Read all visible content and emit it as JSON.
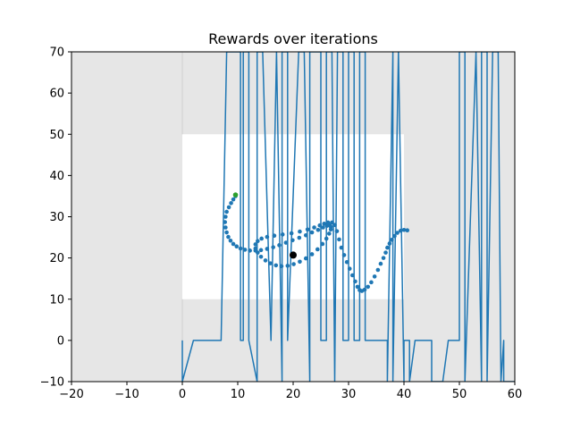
{
  "chart_data": {
    "type": "line",
    "title": "Rewards over iterations",
    "xlabel": "",
    "ylabel": "",
    "xlim": [
      -20,
      60
    ],
    "ylim": [
      -10,
      70
    ],
    "xticks": [
      -20,
      -10,
      0,
      10,
      20,
      30,
      40,
      50,
      60
    ],
    "yticks": [
      -10,
      0,
      10,
      20,
      30,
      40,
      50,
      60,
      70
    ],
    "xtick_labels": [
      "−20",
      "−10",
      "0",
      "10",
      "20",
      "30",
      "40",
      "50",
      "60"
    ],
    "ytick_labels": [
      "−10",
      "0",
      "10",
      "20",
      "30",
      "40",
      "50",
      "60",
      "70"
    ],
    "grid": false,
    "legend": "none",
    "colors": {
      "background_region": "#e6e6e6",
      "inner_region": "#ffffff",
      "series": "#1f77b4",
      "trajectory_points": "#1f77b4",
      "start_point": "#2ca02c",
      "target_point": "#000000"
    },
    "regions": [
      {
        "kind": "outer_shaded",
        "x": [
          -20,
          60
        ],
        "y": [
          -10,
          70
        ]
      },
      {
        "kind": "inner_clear",
        "x": [
          0,
          40
        ],
        "y": [
          10,
          50
        ]
      }
    ],
    "series": [
      {
        "kind": "line",
        "x": [
          0,
          0,
          2,
          2,
          7,
          7.5,
          8,
          10.5,
          10.5,
          11,
          11,
          12,
          12,
          13.5,
          13.5,
          14.5,
          16,
          17,
          18,
          18,
          19,
          19,
          21,
          22,
          23,
          23,
          25,
          25,
          26,
          26,
          27,
          27.5,
          28,
          29,
          29,
          30,
          30,
          31,
          31,
          32,
          32,
          33,
          33,
          35,
          37,
          37,
          38,
          38,
          39,
          39,
          40,
          40,
          41,
          41,
          42,
          42,
          45,
          45,
          47,
          48,
          48,
          50,
          50,
          51,
          51,
          53,
          53,
          54,
          54,
          55,
          55,
          56,
          56,
          57,
          57.5,
          58,
          58,
          59,
          60
        ],
        "y": [
          0,
          -10,
          0,
          0,
          0,
          35,
          70,
          70,
          0,
          0,
          70,
          70,
          0,
          -10,
          70,
          70,
          0,
          70,
          -10,
          70,
          70,
          0,
          70,
          70,
          -10,
          70,
          70,
          0,
          0,
          70,
          70,
          -10,
          70,
          70,
          0,
          0,
          70,
          70,
          0,
          0,
          70,
          70,
          0,
          0,
          0,
          -10,
          70,
          -10,
          70,
          70,
          -10,
          0,
          0,
          -10,
          0,
          0,
          0,
          -10,
          -10,
          0,
          0,
          0,
          70,
          70,
          -10,
          70,
          70,
          -10,
          70,
          70,
          -10,
          70,
          70,
          70,
          -10,
          0,
          -10,
          -10,
          -10
        ]
      },
      {
        "kind": "scatter",
        "name": "",
        "x": [
          9.6,
          9.2,
          8.8,
          8.4,
          8.0,
          7.8,
          7.7,
          7.8,
          8.0,
          8.3,
          8.7,
          9.2,
          9.8,
          10.5,
          11.3,
          12.2,
          13.2,
          14.2,
          15.3,
          16.4,
          17.5,
          18.7,
          19.9,
          21.1,
          22.3,
          23.4,
          24.5,
          25.4,
          26.1,
          26.6,
          26.8,
          26.8,
          26.5,
          26.0,
          25.3,
          24.4,
          23.4,
          22.3,
          21.2,
          20.1,
          19.0,
          17.9,
          16.9,
          15.9,
          15.0,
          14.2,
          13.6,
          13.2,
          13.2,
          13.6,
          14.3,
          15.3,
          16.6,
          18.1,
          19.7,
          21.2,
          22.6,
          23.8,
          24.8,
          25.6,
          26.3,
          27.0,
          27.5,
          27.9,
          28.3,
          28.7,
          29.2,
          29.7,
          30.2,
          30.7,
          31.2,
          31.6,
          32.0,
          32.4,
          32.9,
          33.5,
          34.1,
          34.7,
          35.3,
          35.8,
          36.3,
          36.7,
          37.0,
          37.4,
          37.8,
          38.3,
          38.8,
          39.4,
          40.0,
          40.6
        ],
        "y": [
          35.0,
          34.2,
          33.3,
          32.3,
          31.2,
          30.0,
          28.7,
          27.4,
          26.2,
          25.1,
          24.2,
          23.4,
          22.8,
          22.3,
          22.0,
          21.8,
          21.8,
          21.9,
          22.2,
          22.6,
          23.1,
          23.7,
          24.3,
          24.9,
          25.5,
          26.2,
          26.8,
          27.4,
          27.8,
          27.9,
          27.6,
          26.9,
          25.9,
          24.7,
          23.4,
          22.1,
          20.9,
          19.9,
          19.1,
          18.5,
          18.1,
          18.0,
          18.2,
          18.7,
          19.4,
          20.3,
          21.3,
          22.3,
          23.3,
          24.1,
          24.7,
          25.1,
          25.4,
          25.7,
          26.0,
          26.4,
          26.9,
          27.4,
          27.9,
          28.3,
          28.6,
          28.6,
          28.0,
          26.5,
          24.5,
          22.5,
          20.7,
          19.0,
          17.4,
          15.8,
          14.3,
          13.0,
          12.2,
          12.0,
          12.3,
          13.0,
          14.1,
          15.5,
          17.1,
          18.6,
          20.0,
          21.3,
          22.5,
          23.5,
          24.4,
          25.3,
          26.1,
          26.6,
          26.8,
          26.7
        ]
      }
    ],
    "markers": [
      {
        "name": "start",
        "x": 9.6,
        "y": 35.3
      },
      {
        "name": "target",
        "x": 20.0,
        "y": 20.7
      }
    ]
  }
}
